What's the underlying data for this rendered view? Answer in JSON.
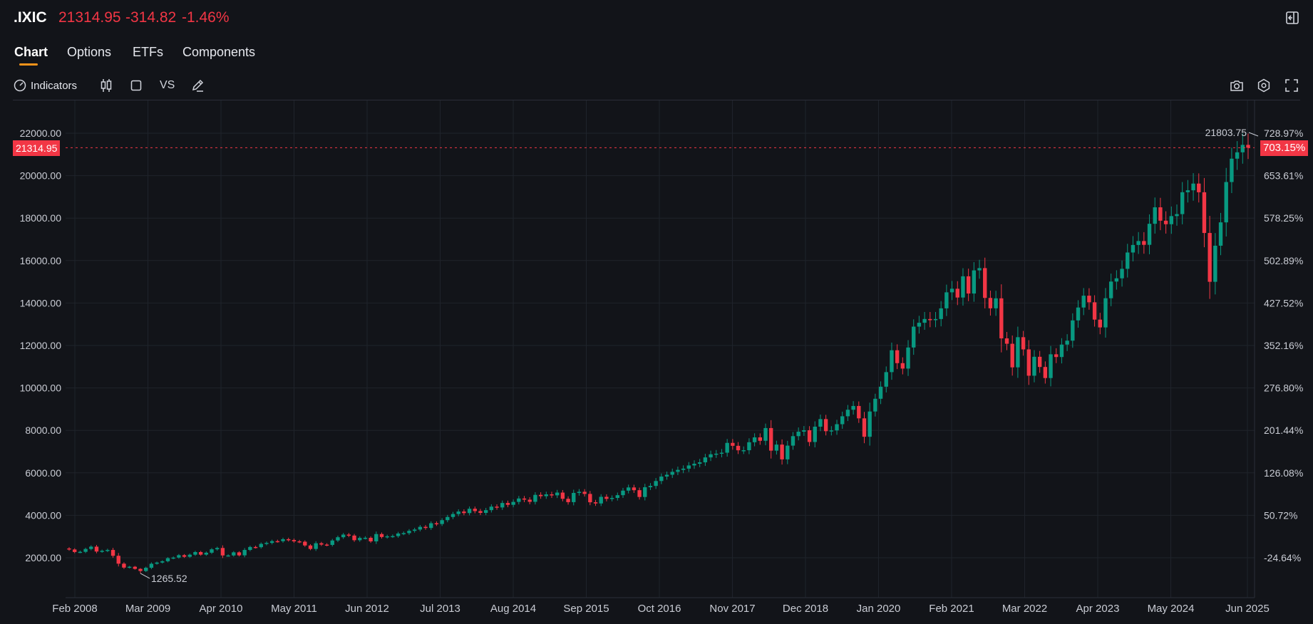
{
  "header": {
    "symbol": ".IXIC",
    "last_price": "21314.95",
    "change": "-314.82",
    "change_pct": "-1.46%",
    "down_color": "#f23645",
    "up_color": "#089981",
    "exit_icon": "panel-exit-icon"
  },
  "tabs": [
    {
      "label": "Chart",
      "active": true
    },
    {
      "label": "Options",
      "active": false
    },
    {
      "label": "ETFs",
      "active": false
    },
    {
      "label": "Components",
      "active": false
    }
  ],
  "toolbar": {
    "indicators_label": "Indicators",
    "candle_icon": "candlestick-icon",
    "compare_square_icon": "square-icon",
    "vs_label": "VS",
    "draw_icon": "pencil-icon",
    "right_icons": [
      "camera-icon",
      "gear-icon",
      "fullscreen-icon"
    ]
  },
  "chart_data": {
    "type": "candlestick",
    "interval": "monthly",
    "title": "",
    "y_left_ticks": [
      "2000.00",
      "4000.00",
      "6000.00",
      "8000.00",
      "10000.00",
      "12000.00",
      "14000.00",
      "16000.00",
      "18000.00",
      "20000.00",
      "22000.00"
    ],
    "y_right_ticks": [
      "-24.64%",
      "50.72%",
      "126.08%",
      "201.44%",
      "276.80%",
      "352.16%",
      "427.52%",
      "502.89%",
      "578.25%",
      "653.61%",
      "728.97%"
    ],
    "x_labels": [
      "Feb 2008",
      "Mar 2009",
      "Apr 2010",
      "May 2011",
      "Jun 2012",
      "Jul 2013",
      "Aug 2014",
      "Sep 2015",
      "Oct 2016",
      "Nov 2017",
      "Dec 2018",
      "Jan 2020",
      "Feb 2021",
      "Mar 2022",
      "Apr 2023",
      "May 2024",
      "Jun 2025"
    ],
    "ylim": [
      500,
      23600
    ],
    "start": "2008-01",
    "current_price_label": "21314.95",
    "current_pct_label": "703.15%",
    "high_label": "21803.75",
    "low_label": "1265.52",
    "grid": true,
    "closes": [
      2390,
      2271,
      2279,
      2413,
      2523,
      2293,
      2326,
      2368,
      2092,
      1721,
      1536,
      1577,
      1476,
      1377,
      1528,
      1717,
      1774,
      1835,
      1979,
      2009,
      2122,
      2045,
      2145,
      2269,
      2147,
      2238,
      2398,
      2461,
      2109,
      2109,
      2255,
      2114,
      2368,
      2507,
      2498,
      2653,
      2700,
      2782,
      2781,
      2874,
      2835,
      2773,
      2756,
      2579,
      2415,
      2684,
      2620,
      2605,
      2814,
      2967,
      3091,
      3046,
      2827,
      2935,
      2940,
      2772,
      3116,
      2978,
      3010,
      3020,
      3142,
      3160,
      3268,
      3329,
      3456,
      3403,
      3626,
      3590,
      3771,
      3920,
      4060,
      4177,
      4104,
      4308,
      4199,
      4114,
      4243,
      4408,
      4370,
      4580,
      4493,
      4631,
      4792,
      4736,
      4635,
      4963,
      4901,
      4986,
      4941,
      5070,
      4777,
      4620,
      5054,
      5108,
      5007,
      4614,
      4558,
      4870,
      4775,
      4818,
      4948,
      5162,
      5312,
      5183,
      4863,
      5323,
      5384,
      5615,
      5825,
      5911,
      6048,
      6140,
      6198,
      6348,
      6429,
      6495,
      6728,
      6874,
      6903,
      6949,
      7411,
      7273,
      7063,
      7066,
      7442,
      7671,
      7510,
      8110,
      7046,
      7331,
      6635,
      7282,
      7729,
      7940,
      8006,
      7453,
      8175,
      8533,
      7963,
      7999,
      8292,
      8665,
      8973,
      9150,
      8567,
      7700,
      8890,
      9490,
      10058,
      10745,
      11775,
      11168,
      10912,
      11905,
      12888,
      13070,
      13247,
      13192,
      13246,
      13749,
      14504,
      14673,
      14259,
      15259,
      14448,
      15538,
      15645,
      14240,
      13751,
      14221,
      12335,
      12081,
      10970,
      12391,
      11816,
      10576,
      11468,
      10988,
      10466,
      11585,
      11456,
      12042,
      12227,
      13181,
      13788,
      14346,
      14035,
      13219,
      12851,
      14226,
      15011,
      15164,
      15611,
      16380,
      16735,
      16920,
      16741,
      17733,
      18509,
      17879,
      17713,
      18095,
      18189,
      19219,
      19311,
      19627,
      19218,
      17300,
      15000,
      16700,
      17800,
      19700,
      20800,
      21100,
      21450,
      21315
    ],
    "series_color_up": "#089981",
    "series_color_down": "#f23645"
  }
}
